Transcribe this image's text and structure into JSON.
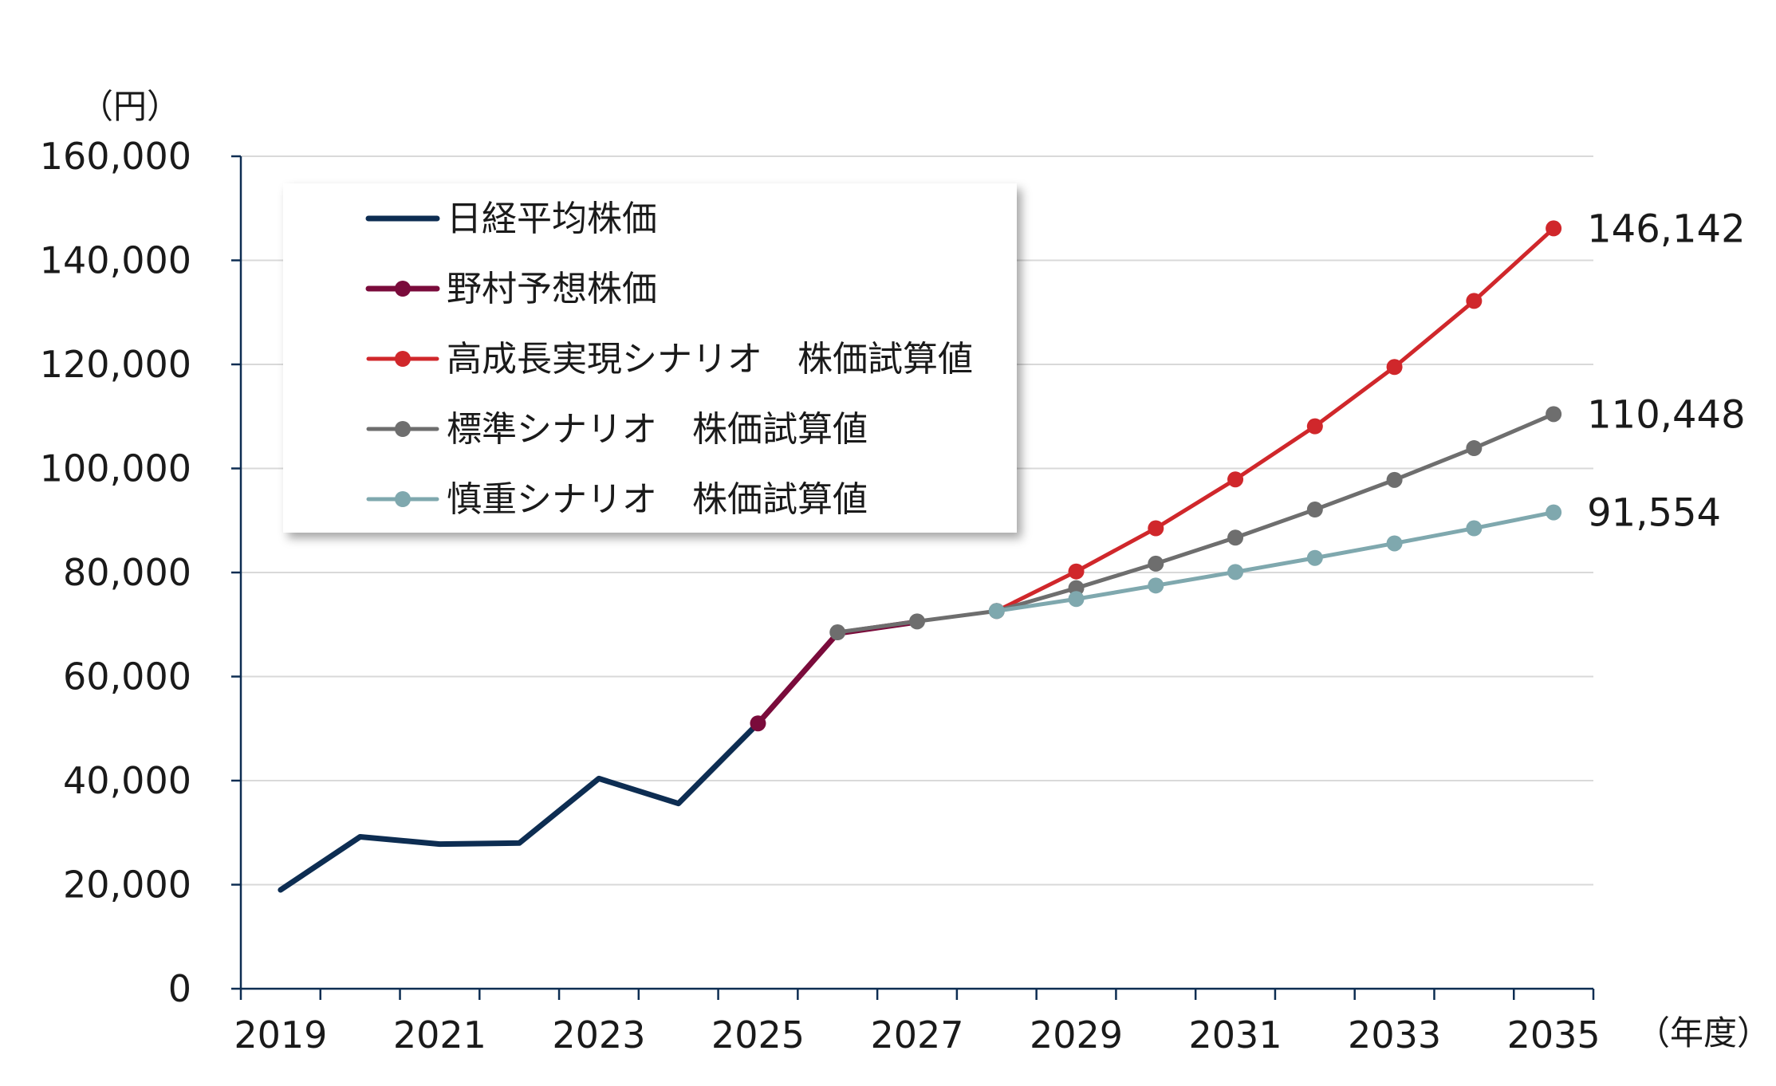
{
  "chart_data": {
    "type": "line",
    "y_unit_label": "（円）",
    "x_unit_label": "（年度）",
    "ylim": [
      0,
      160000
    ],
    "yticks": [
      0,
      20000,
      40000,
      60000,
      80000,
      100000,
      120000,
      140000,
      160000
    ],
    "ytick_labels": [
      "0",
      "20,000",
      "40,000",
      "60,000",
      "80,000",
      "100,000",
      "120,000",
      "140,000",
      "160,000"
    ],
    "x_categories": [
      2019,
      2020,
      2021,
      2022,
      2023,
      2024,
      2025,
      2026,
      2027,
      2028,
      2029,
      2030,
      2031,
      2032,
      2033,
      2034,
      2035
    ],
    "xtick_labels": [
      "2019",
      "2021",
      "2023",
      "2025",
      "2027",
      "2029",
      "2031",
      "2033",
      "2035"
    ],
    "grid": true,
    "legend_position": "top-left",
    "series": [
      {
        "name": "日経平均株価",
        "color": "#0d2d52",
        "markers": false,
        "x": [
          2019,
          2020,
          2021,
          2022,
          2023,
          2024,
          2025
        ],
        "values": [
          19000,
          29200,
          27800,
          28000,
          40400,
          35600,
          51000
        ]
      },
      {
        "name": "野村予想株価",
        "color": "#7a0b3b",
        "markers": true,
        "marker_points": [
          0
        ],
        "x": [
          2025,
          2026,
          2027
        ],
        "values": [
          51000,
          68300,
          70500
        ]
      },
      {
        "name": "高成長実現シナリオ　株価試算値",
        "color": "#d0272b",
        "markers": true,
        "x": [
          2028,
          2029,
          2030,
          2031,
          2032,
          2033,
          2034,
          2035
        ],
        "values": [
          72600,
          80200,
          88500,
          97900,
          108100,
          119500,
          132200,
          146142
        ]
      },
      {
        "name": "標準シナリオ　株価試算値",
        "color": "#6e6e6e",
        "markers": true,
        "x": [
          2026,
          2027,
          2028,
          2029,
          2030,
          2031,
          2032,
          2033,
          2034,
          2035
        ],
        "values": [
          68500,
          70600,
          72600,
          77000,
          81700,
          86700,
          92100,
          97800,
          103900,
          110448
        ]
      },
      {
        "name": "慎重シナリオ　株価試算値",
        "color": "#7fa8ae",
        "markers": true,
        "x": [
          2028,
          2029,
          2030,
          2031,
          2032,
          2033,
          2034,
          2035
        ],
        "values": [
          72600,
          74900,
          77500,
          80100,
          82800,
          85600,
          88500,
          91554
        ]
      }
    ],
    "end_labels": [
      "146,142",
      "110,448",
      "91,554"
    ]
  }
}
